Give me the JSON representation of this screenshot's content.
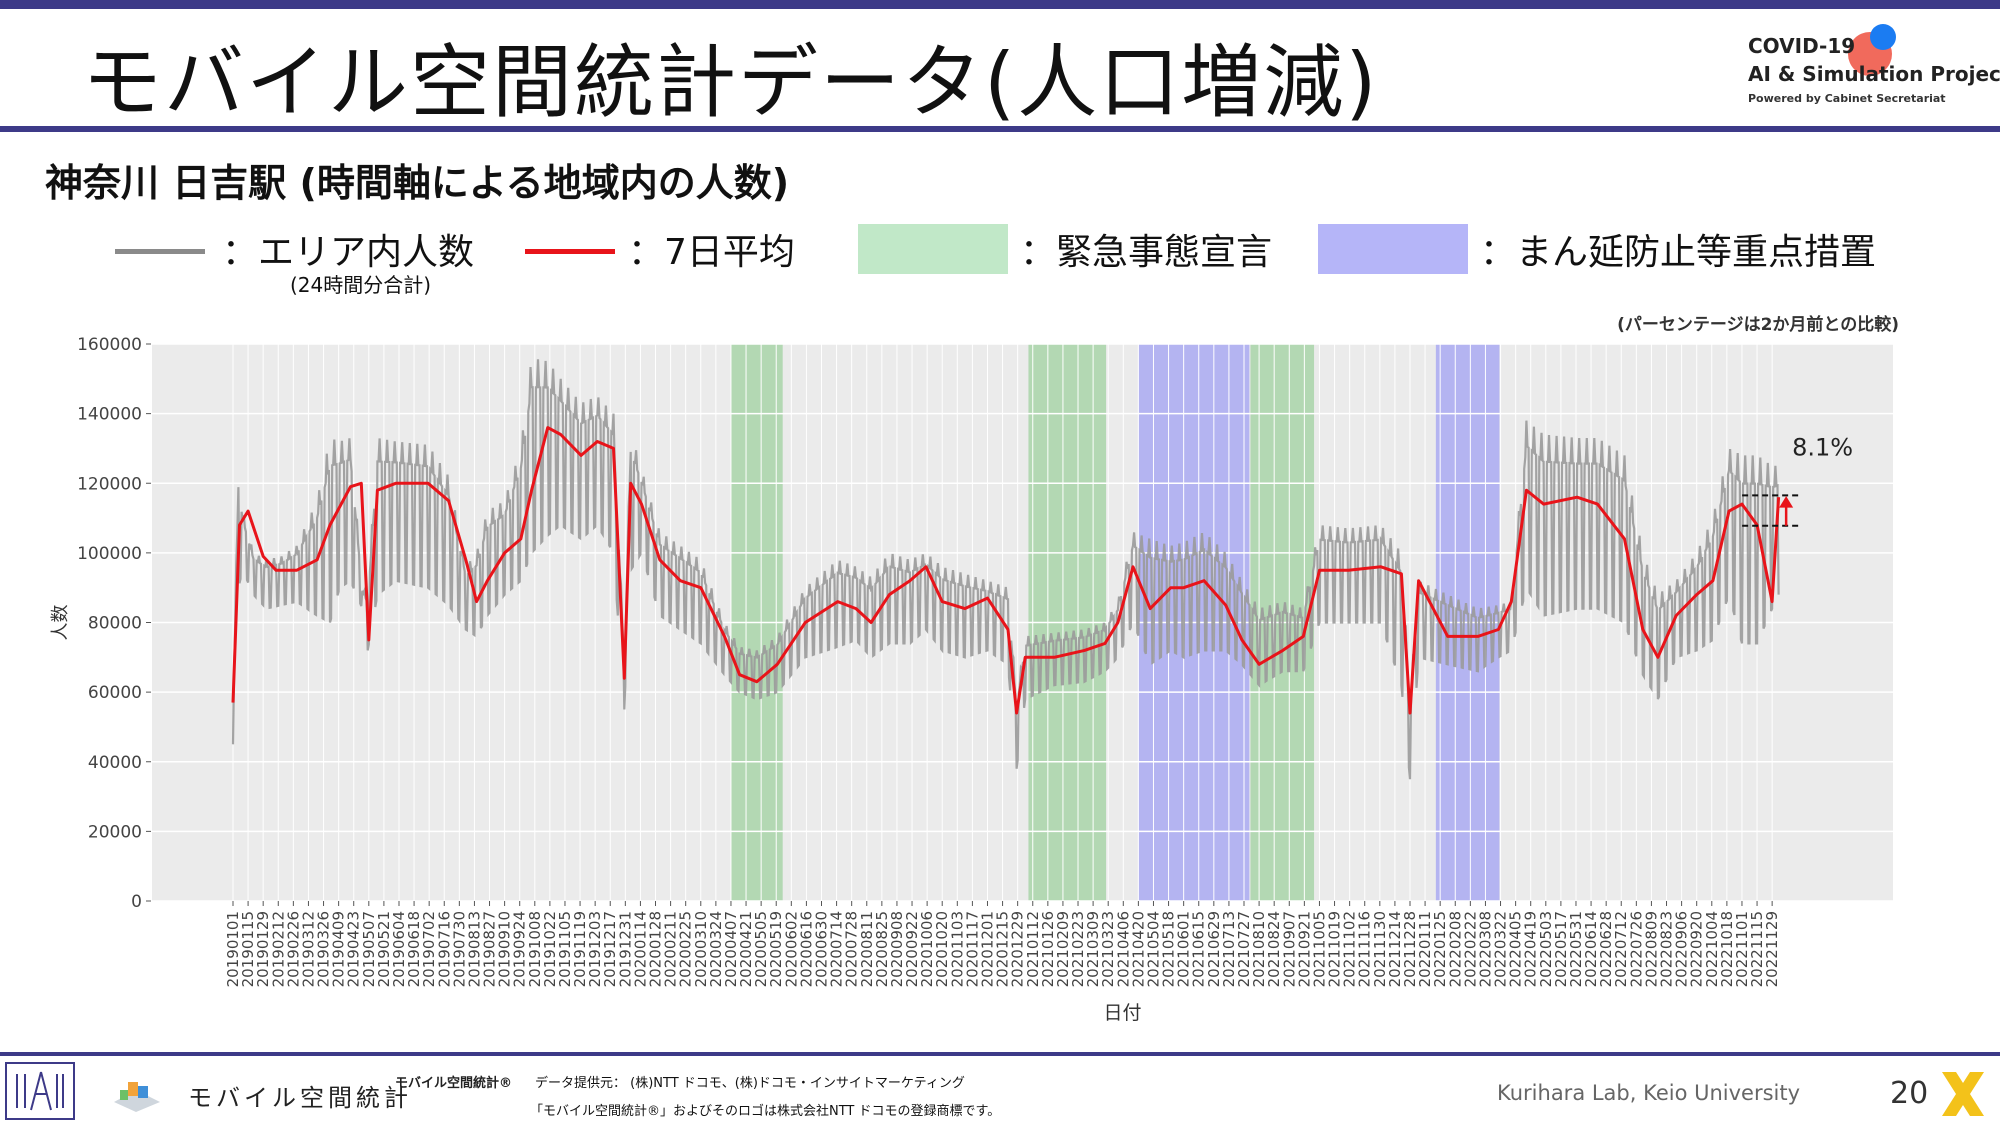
{
  "header": {
    "title": "モバイル空間統計データ(人口増減)",
    "logo_line1": "COVID-19",
    "logo_line2": "AI & Simulation Project",
    "logo_line3": "Powered by Cabinet Secretariat"
  },
  "subtitle": "神奈川 日吉駅 (時間軸による地域内の人数)",
  "legend": {
    "gray_label": "：エリア内人数",
    "gray_note": "(24時間分合計)",
    "red_label": "：7日平均",
    "green_label": "：緊急事態宣言",
    "blue_label": "：まん延防止等重点措置"
  },
  "colors": {
    "brand_bar": "#3d3a88",
    "daily_line": "#9a9a9a",
    "avg_line": "#e8141a",
    "emergency_band": "#c1e8c8",
    "priority_band": "#b5b5f8",
    "plot_bg": "#ebebeb"
  },
  "chart_data": {
    "type": "line",
    "title": "",
    "note": "(パーセンテージは2か月前との比較)",
    "xlabel": "日付",
    "ylabel": "人数",
    "ylim": [
      0,
      160000
    ],
    "yticks": [
      0,
      20000,
      40000,
      60000,
      80000,
      100000,
      120000,
      140000,
      160000
    ],
    "xticks": [
      "20190101",
      "20190115",
      "20190129",
      "20190212",
      "20190226",
      "20190312",
      "20190326",
      "20190409",
      "20190423",
      "20190507",
      "20190521",
      "20190604",
      "20190618",
      "20190702",
      "20190716",
      "20190730",
      "20190813",
      "20190827",
      "20190910",
      "20190924",
      "20191008",
      "20191022",
      "20191105",
      "20191119",
      "20191203",
      "20191217",
      "20191231",
      "20200114",
      "20200128",
      "20200211",
      "20200225",
      "20200310",
      "20200324",
      "20200407",
      "20200421",
      "20200505",
      "20200519",
      "20200602",
      "20200616",
      "20200630",
      "20200714",
      "20200728",
      "20200811",
      "20200825",
      "20200908",
      "20200922",
      "20201006",
      "20201020",
      "20201103",
      "20201117",
      "20201201",
      "20201215",
      "20201229",
      "20210112",
      "20210126",
      "20210209",
      "20210223",
      "20210309",
      "20210323",
      "20210406",
      "20210420",
      "20210504",
      "20210518",
      "20210601",
      "20210615",
      "20210629",
      "20210713",
      "20210727",
      "20210810",
      "20210824",
      "20210907",
      "20210921",
      "20211005",
      "20211019",
      "20211102",
      "20211116",
      "20211130",
      "20211214",
      "20211228",
      "20220111",
      "20220125",
      "20220208",
      "20220222",
      "20220308",
      "20220322",
      "20220405",
      "20220419",
      "20220503",
      "20220517",
      "20220531",
      "20220614",
      "20220628",
      "20220712",
      "20220726",
      "20220809",
      "20220823",
      "20220906",
      "20220920",
      "20221004",
      "20221018",
      "20221101",
      "20221115",
      "20221129"
    ],
    "grid": true,
    "bands": [
      {
        "kind": "緊急事態宣言",
        "start": "20200407",
        "end": "20200525"
      },
      {
        "kind": "緊急事態宣言",
        "start": "20210108",
        "end": "20210321"
      },
      {
        "kind": "まん延防止等重点措置",
        "start": "20210420",
        "end": "20210801"
      },
      {
        "kind": "緊急事態宣言",
        "start": "20210802",
        "end": "20210930"
      },
      {
        "kind": "まん延防止等重点措置",
        "start": "20220121",
        "end": "20220321"
      }
    ],
    "series": [
      {
        "name": "エリア内人数",
        "x": [
          "20190101",
          "20190106",
          "20190110",
          "20190120",
          "20190201",
          "20190215",
          "20190301",
          "20190320",
          "20190401",
          "20190410",
          "20190420",
          "20190501",
          "20190506",
          "20190515",
          "20190601",
          "20190701",
          "20190720",
          "20190805",
          "20190815",
          "20190825",
          "20190910",
          "20190925",
          "20191005",
          "20191020",
          "20191101",
          "20191120",
          "20191205",
          "20191220",
          "20191230",
          "20200105",
          "20200115",
          "20200201",
          "20200220",
          "20200310",
          "20200401",
          "20200415",
          "20200501",
          "20200520",
          "20200615",
          "20200715",
          "20200801",
          "20200815",
          "20200901",
          "20200920",
          "20201005",
          "20201020",
          "20201110",
          "20201201",
          "20201220",
          "20201228",
          "20210105",
          "20210201",
          "20210301",
          "20210320",
          "20210401",
          "20210415",
          "20210501",
          "20210520",
          "20210601",
          "20210620",
          "20210710",
          "20210725",
          "20210810",
          "20210901",
          "20210920",
          "20211005",
          "20211101",
          "20211201",
          "20211220",
          "20211228",
          "20220105",
          "20220201",
          "20220301",
          "20220320",
          "20220401",
          "20220415",
          "20220501",
          "20220601",
          "20220620",
          "20220715",
          "20220801",
          "20220815",
          "20220901",
          "20220920",
          "20221005",
          "20221020",
          "20221101",
          "20221115",
          "20221129",
          "20221205"
        ],
        "low": [
          45000,
          90000,
          95000,
          88000,
          84000,
          85000,
          86000,
          82000,
          80000,
          90000,
          92000,
          84000,
          72000,
          88000,
          92000,
          90000,
          85000,
          78000,
          76000,
          82000,
          88000,
          92000,
          100000,
          105000,
          108000,
          104000,
          108000,
          100000,
          55000,
          95000,
          100000,
          82000,
          78000,
          74000,
          65000,
          60000,
          58000,
          60000,
          70000,
          73000,
          75000,
          70000,
          74000,
          74000,
          78000,
          72000,
          70000,
          72000,
          68000,
          38000,
          58000,
          62000,
          63000,
          66000,
          70000,
          80000,
          68000,
          72000,
          70000,
          72000,
          72000,
          68000,
          62000,
          66000,
          66000,
          80000,
          80000,
          80000,
          62000,
          35000,
          70000,
          68000,
          66000,
          70000,
          72000,
          90000,
          82000,
          84000,
          84000,
          80000,
          65000,
          58000,
          70000,
          72000,
          75000,
          88000,
          74000,
          74000,
          84000,
          88000
        ],
        "high": [
          55000,
          124000,
          112000,
          100000,
          98000,
          99000,
          102000,
          115000,
          133000,
          132000,
          133000,
          90000,
          88000,
          133000,
          132000,
          131000,
          122000,
          96000,
          100000,
          112000,
          115000,
          130000,
          156000,
          155000,
          150000,
          143000,
          145000,
          140000,
          70000,
          135000,
          124000,
          106000,
          102000,
          98000,
          80000,
          73000,
          72000,
          76000,
          90000,
          98000,
          96000,
          93000,
          100000,
          98000,
          100000,
          96000,
          94000,
          92000,
          90000,
          58000,
          76000,
          77000,
          78000,
          80000,
          86000,
          106000,
          104000,
          102000,
          103000,
          106000,
          100000,
          92000,
          84000,
          86000,
          84000,
          108000,
          107000,
          108000,
          100000,
          58000,
          92000,
          88000,
          84000,
          85000,
          86000,
          138000,
          134000,
          133000,
          133000,
          128000,
          100000,
          88000,
          92000,
          100000,
          110000,
          130000,
          128000,
          128000,
          125000,
          125000
        ]
      },
      {
        "name": "7日平均",
        "x": [
          "20190101",
          "20190107",
          "20190115",
          "20190129",
          "20190210",
          "20190301",
          "20190320",
          "20190401",
          "20190420",
          "20190430",
          "20190507",
          "20190515",
          "20190601",
          "20190701",
          "20190720",
          "20190805",
          "20190815",
          "20190825",
          "20190910",
          "20190925",
          "20191005",
          "20191020",
          "20191101",
          "20191120",
          "20191205",
          "20191220",
          "20191230",
          "20200105",
          "20200115",
          "20200201",
          "20200220",
          "20200310",
          "20200401",
          "20200415",
          "20200501",
          "20200520",
          "20200615",
          "20200715",
          "20200801",
          "20200815",
          "20200901",
          "20200920",
          "20201005",
          "20201020",
          "20201110",
          "20201201",
          "20201220",
          "20201228",
          "20210105",
          "20210201",
          "20210301",
          "20210320",
          "20210401",
          "20210415",
          "20210501",
          "20210520",
          "20210601",
          "20210620",
          "20210710",
          "20210725",
          "20210810",
          "20210901",
          "20210920",
          "20211005",
          "20211101",
          "20211201",
          "20211220",
          "20211228",
          "20220105",
          "20220201",
          "20220301",
          "20220320",
          "20220401",
          "20220415",
          "20220501",
          "20220601",
          "20220620",
          "20220715",
          "20220801",
          "20220815",
          "20220901",
          "20220920",
          "20221005",
          "20221020",
          "20221101",
          "20221115",
          "20221129",
          "20221205"
        ],
        "values": [
          57000,
          108000,
          112000,
          99000,
          95000,
          95000,
          98000,
          108000,
          119000,
          120000,
          75000,
          118000,
          120000,
          120000,
          115000,
          98000,
          86000,
          92000,
          100000,
          104000,
          118000,
          136000,
          134000,
          128000,
          132000,
          130000,
          64000,
          120000,
          114000,
          98000,
          92000,
          90000,
          76000,
          65000,
          63000,
          68000,
          80000,
          86000,
          84000,
          80000,
          88000,
          92000,
          96000,
          86000,
          84000,
          87000,
          78000,
          54000,
          70000,
          70000,
          72000,
          74000,
          80000,
          96000,
          84000,
          90000,
          90000,
          92000,
          85000,
          75000,
          68000,
          72000,
          76000,
          95000,
          95000,
          96000,
          94000,
          54000,
          92000,
          76000,
          76000,
          78000,
          86000,
          118000,
          114000,
          116000,
          114000,
          104000,
          78000,
          70000,
          82000,
          88000,
          92000,
          112000,
          114000,
          108000,
          86000,
          116000
        ]
      }
    ],
    "annotations": [
      {
        "text": "8.1%",
        "at": "20221129"
      }
    ]
  },
  "footer": {
    "brand": "モバイル空間統計",
    "note0": "モバイル空間統計®",
    "note1": "データ提供元： (株)NTT ドコモ、(株)ドコモ・インサイトマーケティング",
    "note2": "「モバイル空間統計®」およびそのロゴは株式会社NTT ドコモの登録商標です。",
    "lab": "Kurihara Lab, Keio University",
    "page": "20"
  }
}
